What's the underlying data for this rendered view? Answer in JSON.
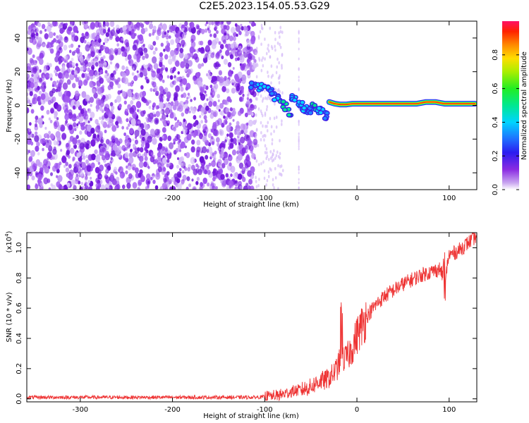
{
  "title": "C2E5.2023.154.05.53.G29",
  "chart_data": [
    {
      "type": "heatmap",
      "xlabel": "Height of straight line (km)",
      "ylabel": "Frequency (Hz)",
      "xlim": [
        -358,
        130
      ],
      "ylim": [
        -50,
        50
      ],
      "xticks": [
        -300,
        -200,
        -100,
        0,
        100
      ],
      "yticks": [
        -40,
        -20,
        0,
        20,
        40
      ],
      "noise_region_x": [
        -358,
        -110
      ],
      "sparse_noise_x": [
        -110,
        -80
      ],
      "colorbar": {
        "label": "Normalized spectral amplitude",
        "range": [
          0,
          1
        ],
        "ticks": [
          "0.0",
          "0.2",
          "0.4",
          "0.6",
          "0.8"
        ]
      },
      "signal_trace": [
        {
          "x": -112,
          "y": 12,
          "a": 0.35
        },
        {
          "x": -105,
          "y": 11,
          "a": 0.45
        },
        {
          "x": -98,
          "y": 10,
          "a": 0.4
        },
        {
          "x": -92,
          "y": 8,
          "a": 0.35
        },
        {
          "x": -86,
          "y": 5,
          "a": 0.4
        },
        {
          "x": -80,
          "y": 1,
          "a": 0.5
        },
        {
          "x": -75,
          "y": -4,
          "a": 0.55
        },
        {
          "x": -68,
          "y": 4,
          "a": 0.4
        },
        {
          "x": -62,
          "y": 1,
          "a": 0.45
        },
        {
          "x": -56,
          "y": -2,
          "a": 0.4
        },
        {
          "x": -50,
          "y": -3,
          "a": 0.35
        },
        {
          "x": -45,
          "y": -1,
          "a": 0.5
        },
        {
          "x": -40,
          "y": -3,
          "a": 0.45
        },
        {
          "x": -35,
          "y": -6,
          "a": 0.3
        },
        {
          "x": -30,
          "y": 2,
          "a": 0.55
        },
        {
          "x": -24,
          "y": 1,
          "a": 0.7
        },
        {
          "x": -18,
          "y": 0.5,
          "a": 0.75
        },
        {
          "x": -12,
          "y": 0.5,
          "a": 0.8
        },
        {
          "x": -5,
          "y": 1,
          "a": 0.85
        },
        {
          "x": 0,
          "y": 1,
          "a": 0.9
        },
        {
          "x": 10,
          "y": 1,
          "a": 0.95
        },
        {
          "x": 20,
          "y": 1,
          "a": 0.95
        },
        {
          "x": 35,
          "y": 1,
          "a": 1.0
        },
        {
          "x": 50,
          "y": 1,
          "a": 1.0
        },
        {
          "x": 65,
          "y": 1,
          "a": 0.95
        },
        {
          "x": 75,
          "y": 2,
          "a": 0.7
        },
        {
          "x": 85,
          "y": 2,
          "a": 0.9
        },
        {
          "x": 95,
          "y": 1,
          "a": 0.95
        },
        {
          "x": 110,
          "y": 1,
          "a": 0.95
        },
        {
          "x": 128,
          "y": 1,
          "a": 0.95
        }
      ]
    },
    {
      "type": "line",
      "xlabel": "Height of straight line (km)",
      "ylabel": "SNR (10 * v/v)",
      "y_scale_label": "(x10",
      "y_scale_exp": "4",
      "y_scale_close": ")",
      "xlim": [
        -358,
        130
      ],
      "ylim": [
        -0.02,
        1.1
      ],
      "xticks": [
        -300,
        -200,
        -100,
        0,
        100
      ],
      "yticks": [
        "0.0",
        "0.2",
        "0.4",
        "0.6",
        "0.8",
        "1.0"
      ],
      "color": "#ee3333",
      "x": [
        -358,
        -300,
        -200,
        -110,
        -95,
        -80,
        -70,
        -60,
        -50,
        -45,
        -40,
        -35,
        -30,
        -25,
        -20,
        -17,
        -15,
        -10,
        -5,
        0,
        5,
        10,
        20,
        30,
        40,
        50,
        60,
        70,
        80,
        90,
        94,
        96,
        98,
        100,
        110,
        120,
        130
      ],
      "y": [
        0.01,
        0.01,
        0.01,
        0.01,
        0.015,
        0.03,
        0.05,
        0.06,
        0.08,
        0.1,
        0.12,
        0.12,
        0.14,
        0.17,
        0.22,
        0.3,
        0.25,
        0.28,
        0.34,
        0.42,
        0.48,
        0.54,
        0.62,
        0.68,
        0.72,
        0.76,
        0.79,
        0.82,
        0.84,
        0.86,
        0.8,
        0.74,
        0.9,
        0.95,
        0.98,
        1.03,
        1.08
      ]
    }
  ]
}
